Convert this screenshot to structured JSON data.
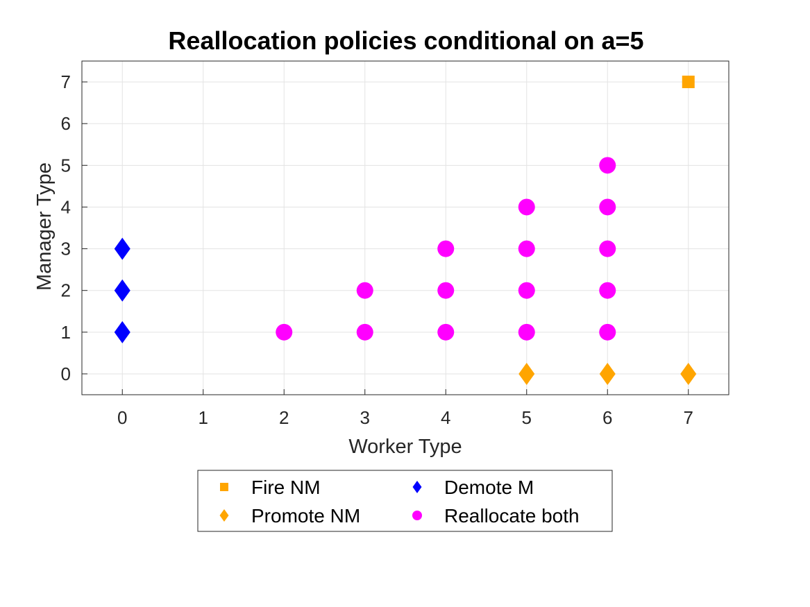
{
  "chart_data": {
    "type": "scatter",
    "title": "Reallocation policies conditional on a=5",
    "xlabel": "Worker Type",
    "ylabel": "Manager Type",
    "xlim": [
      -0.5,
      7.5
    ],
    "ylim": [
      -0.5,
      7.5
    ],
    "xticks": [
      "0",
      "1",
      "2",
      "3",
      "4",
      "5",
      "6",
      "7"
    ],
    "yticks": [
      "0",
      "1",
      "2",
      "3",
      "4",
      "5",
      "6",
      "7"
    ],
    "grid": true,
    "legend_placement": "bottom-outside",
    "series": [
      {
        "name": "Fire NM",
        "marker": "square",
        "color": "#FFA500",
        "points": [
          [
            7,
            7
          ]
        ]
      },
      {
        "name": "Promote NM",
        "marker": "diamond",
        "color": "#FFA500",
        "points": [
          [
            5,
            0
          ],
          [
            6,
            0
          ],
          [
            7,
            0
          ]
        ]
      },
      {
        "name": "Demote M",
        "marker": "diamond",
        "color": "#0000FF",
        "points": [
          [
            0,
            1
          ],
          [
            0,
            2
          ],
          [
            0,
            3
          ]
        ]
      },
      {
        "name": "Reallocate both",
        "marker": "circle",
        "color": "#FF00FF",
        "points": [
          [
            2,
            1
          ],
          [
            3,
            1
          ],
          [
            3,
            2
          ],
          [
            4,
            1
          ],
          [
            4,
            2
          ],
          [
            4,
            3
          ],
          [
            5,
            1
          ],
          [
            5,
            2
          ],
          [
            5,
            3
          ],
          [
            5,
            4
          ],
          [
            6,
            1
          ],
          [
            6,
            2
          ],
          [
            6,
            3
          ],
          [
            6,
            4
          ],
          [
            6,
            5
          ]
        ]
      }
    ]
  }
}
